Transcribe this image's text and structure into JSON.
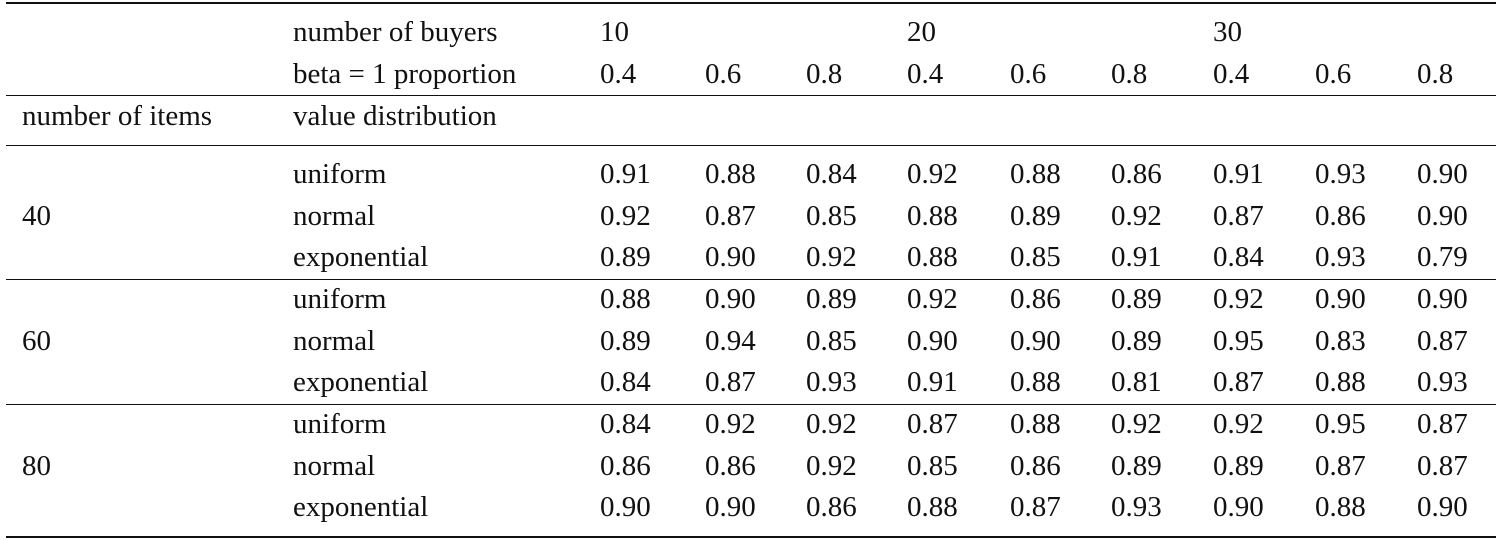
{
  "table": {
    "header": {
      "buyers_label": "number of buyers",
      "beta_label": "beta = 1 proportion",
      "buyer_groups": [
        "10",
        "20",
        "30"
      ],
      "beta_values": [
        "0.4",
        "0.6",
        "0.8",
        "0.4",
        "0.6",
        "0.8",
        "0.4",
        "0.6",
        "0.8"
      ],
      "items_label": "number of items",
      "distribution_label": "value distribution"
    },
    "groups": [
      {
        "items": "40",
        "rows": [
          {
            "dist": "uniform",
            "values": [
              "0.91",
              "0.88",
              "0.84",
              "0.92",
              "0.88",
              "0.86",
              "0.91",
              "0.93",
              "0.90"
            ]
          },
          {
            "dist": "normal",
            "values": [
              "0.92",
              "0.87",
              "0.85",
              "0.88",
              "0.89",
              "0.92",
              "0.87",
              "0.86",
              "0.90"
            ]
          },
          {
            "dist": "exponential",
            "values": [
              "0.89",
              "0.90",
              "0.92",
              "0.88",
              "0.85",
              "0.91",
              "0.84",
              "0.93",
              "0.79"
            ]
          }
        ]
      },
      {
        "items": "60",
        "rows": [
          {
            "dist": "uniform",
            "values": [
              "0.88",
              "0.90",
              "0.89",
              "0.92",
              "0.86",
              "0.89",
              "0.92",
              "0.90",
              "0.90"
            ]
          },
          {
            "dist": "normal",
            "values": [
              "0.89",
              "0.94",
              "0.85",
              "0.90",
              "0.90",
              "0.89",
              "0.95",
              "0.83",
              "0.87"
            ]
          },
          {
            "dist": "exponential",
            "values": [
              "0.84",
              "0.87",
              "0.93",
              "0.91",
              "0.88",
              "0.81",
              "0.87",
              "0.88",
              "0.93"
            ]
          }
        ]
      },
      {
        "items": "80",
        "rows": [
          {
            "dist": "uniform",
            "values": [
              "0.84",
              "0.92",
              "0.92",
              "0.87",
              "0.88",
              "0.92",
              "0.92",
              "0.95",
              "0.87"
            ]
          },
          {
            "dist": "normal",
            "values": [
              "0.86",
              "0.86",
              "0.92",
              "0.85",
              "0.86",
              "0.89",
              "0.89",
              "0.87",
              "0.87"
            ]
          },
          {
            "dist": "exponential",
            "values": [
              "0.90",
              "0.90",
              "0.86",
              "0.88",
              "0.87",
              "0.93",
              "0.90",
              "0.88",
              "0.90"
            ]
          }
        ]
      }
    ]
  }
}
